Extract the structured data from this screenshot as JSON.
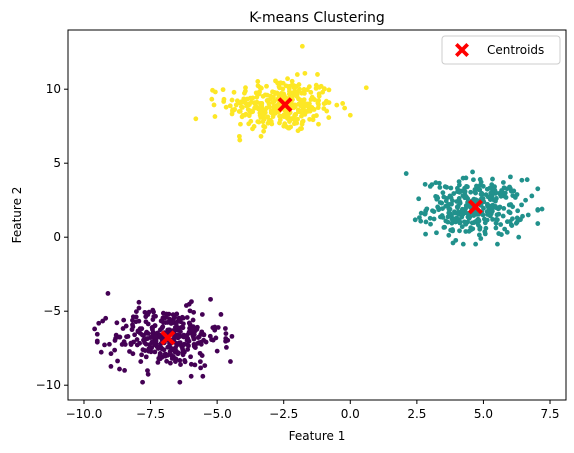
{
  "chart_data": {
    "type": "scatter",
    "title": "K-means Clustering",
    "xlabel": "Feature 1",
    "ylabel": "Feature 2",
    "xlim": [
      -10.6,
      8.1
    ],
    "ylim": [
      -11.0,
      14.0
    ],
    "xticks": [
      -10.0,
      -7.5,
      -5.0,
      -2.5,
      0.0,
      2.5,
      5.0,
      7.5
    ],
    "xtick_labels": [
      "−10.0",
      "−7.5",
      "−5.0",
      "−2.5",
      "0.0",
      "2.5",
      "5.0",
      "7.5"
    ],
    "yticks": [
      -10,
      -5,
      0,
      5,
      10
    ],
    "ytick_labels": [
      "−10",
      "−5",
      "0",
      "5",
      "10"
    ],
    "grid": false,
    "legend": {
      "position": "top-right",
      "entries": [
        "Centroids"
      ]
    },
    "clusters": [
      {
        "color": "#fde725",
        "center": [
          -2.6,
          8.9
        ],
        "spread": [
          1.0,
          0.9
        ],
        "count": 330
      },
      {
        "color": "#21918c",
        "center": [
          4.7,
          2.0
        ],
        "spread": [
          0.9,
          0.95
        ],
        "count": 330
      },
      {
        "color": "#440154",
        "center": [
          -6.9,
          -6.8
        ],
        "spread": [
          1.0,
          1.0
        ],
        "count": 330
      }
    ],
    "outliers": [
      {
        "x": -5.8,
        "y": 8.0,
        "cluster": 0
      },
      {
        "x": -1.8,
        "y": 12.9,
        "cluster": 0
      },
      {
        "x": 0.6,
        "y": 10.1,
        "cluster": 0
      },
      {
        "x": 2.1,
        "y": 4.3,
        "cluster": 1
      },
      {
        "x": 7.2,
        "y": 1.9,
        "cluster": 1
      },
      {
        "x": -9.1,
        "y": -3.8,
        "cluster": 2
      },
      {
        "x": -7.8,
        "y": -9.8,
        "cluster": 2
      },
      {
        "x": -6.4,
        "y": -9.8,
        "cluster": 2
      },
      {
        "x": -4.5,
        "y": -8.4,
        "cluster": 2
      },
      {
        "x": -9.6,
        "y": -6.2,
        "cluster": 2
      }
    ],
    "centroids": {
      "name": "Centroids",
      "color": "#ff0000",
      "marker": "X",
      "points": [
        {
          "x": -2.45,
          "y": 8.95
        },
        {
          "x": 4.7,
          "y": 2.05
        },
        {
          "x": -6.85,
          "y": -6.8
        }
      ]
    }
  }
}
